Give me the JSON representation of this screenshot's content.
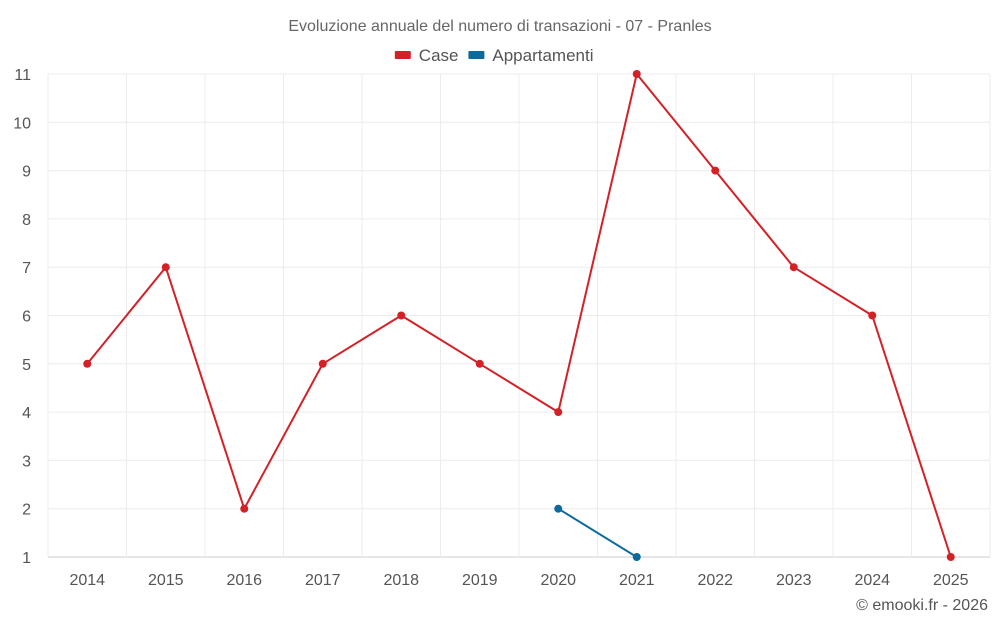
{
  "chart_data": {
    "type": "line",
    "title": "Evoluzione annuale del numero di transazioni - 07 - Pranles",
    "xlabel": "",
    "ylabel": "",
    "categories": [
      "2014",
      "2015",
      "2016",
      "2017",
      "2018",
      "2019",
      "2020",
      "2021",
      "2022",
      "2023",
      "2024",
      "2025"
    ],
    "ylim": [
      1,
      11
    ],
    "yticks": [
      "1",
      "2",
      "3",
      "4",
      "5",
      "6",
      "7",
      "8",
      "9",
      "10",
      "11"
    ],
    "grid": true,
    "legend_position": "top-center",
    "series": [
      {
        "name": "Case",
        "color": "#d32127",
        "values": [
          5,
          7,
          2,
          5,
          6,
          5,
          4,
          11,
          9,
          7,
          6,
          1
        ]
      },
      {
        "name": "Appartamenti",
        "color": "#0b6a9e",
        "values": [
          null,
          null,
          null,
          null,
          null,
          null,
          2,
          1,
          null,
          null,
          null,
          null
        ]
      }
    ]
  },
  "credit": "© emooki.fr - 2026"
}
